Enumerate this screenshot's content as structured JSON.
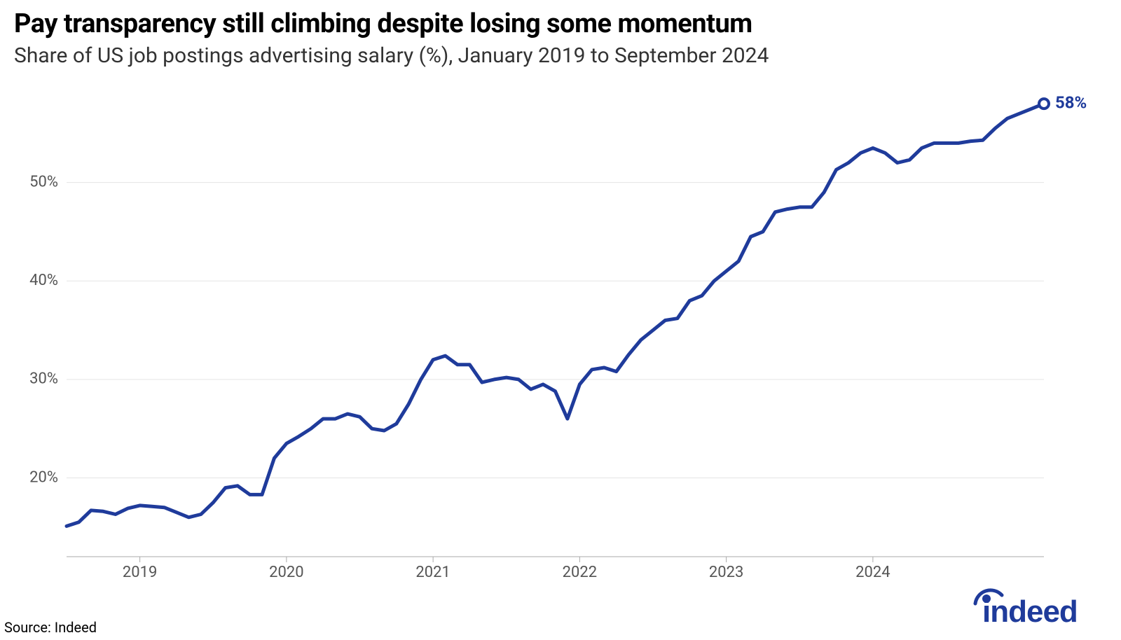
{
  "title": "Pay transparency still climbing despite losing some momentum",
  "subtitle": "Share of US job postings advertising salary (%), January 2019 to September 2024",
  "source": "Source: Indeed",
  "logo_text": "indeed",
  "chart": {
    "type": "line",
    "line_color": "#1f3b9b",
    "line_width": 5,
    "end_marker": {
      "shape": "circle",
      "radius": 7,
      "fill": "#ffffff",
      "stroke": "#1f3b9b",
      "stroke_width": 4,
      "label": "58%"
    },
    "background_color": "#ffffff",
    "grid_color": "#e5e5e5",
    "grid_width": 1,
    "ylim": [
      12,
      60
    ],
    "yticks": [
      20,
      30,
      40,
      50
    ],
    "ytick_labels": [
      "20%",
      "30%",
      "40%",
      "50%"
    ],
    "x_start": "2019-01",
    "x_end": "2024-09",
    "xticks": [
      "2019",
      "2020",
      "2021",
      "2022",
      "2023",
      "2024"
    ],
    "xtick_positions_months": [
      6,
      18,
      30,
      42,
      54,
      66
    ],
    "axis_color": "#aaaaaa",
    "tick_length": 8,
    "tick_font_size": 22,
    "title_font_size": 38,
    "subtitle_font_size": 30,
    "series": [
      15.1,
      15.5,
      16.7,
      16.6,
      16.3,
      16.9,
      17.2,
      17.1,
      17.0,
      16.5,
      16.0,
      16.3,
      17.5,
      19.0,
      19.2,
      18.3,
      18.3,
      22.0,
      23.5,
      24.2,
      25.0,
      26.0,
      26.0,
      26.5,
      26.2,
      25.0,
      24.8,
      25.5,
      27.5,
      30.0,
      32.0,
      32.4,
      31.5,
      31.5,
      29.7,
      30.0,
      30.2,
      30.0,
      29.0,
      29.5,
      28.8,
      26.0,
      29.5,
      31.0,
      31.2,
      30.8,
      32.5,
      34.0,
      35.0,
      36.0,
      36.2,
      38.0,
      38.5,
      40.0,
      41.0,
      42.0,
      44.5,
      45.0,
      47.0,
      47.3,
      47.5,
      47.5,
      49.0,
      51.3,
      52.0,
      53.0,
      53.5,
      53.0,
      52.0,
      52.3,
      53.5,
      54.0,
      54.0,
      54.0,
      54.2,
      54.3,
      55.5,
      56.5,
      57.0,
      57.5,
      58.0
    ]
  }
}
